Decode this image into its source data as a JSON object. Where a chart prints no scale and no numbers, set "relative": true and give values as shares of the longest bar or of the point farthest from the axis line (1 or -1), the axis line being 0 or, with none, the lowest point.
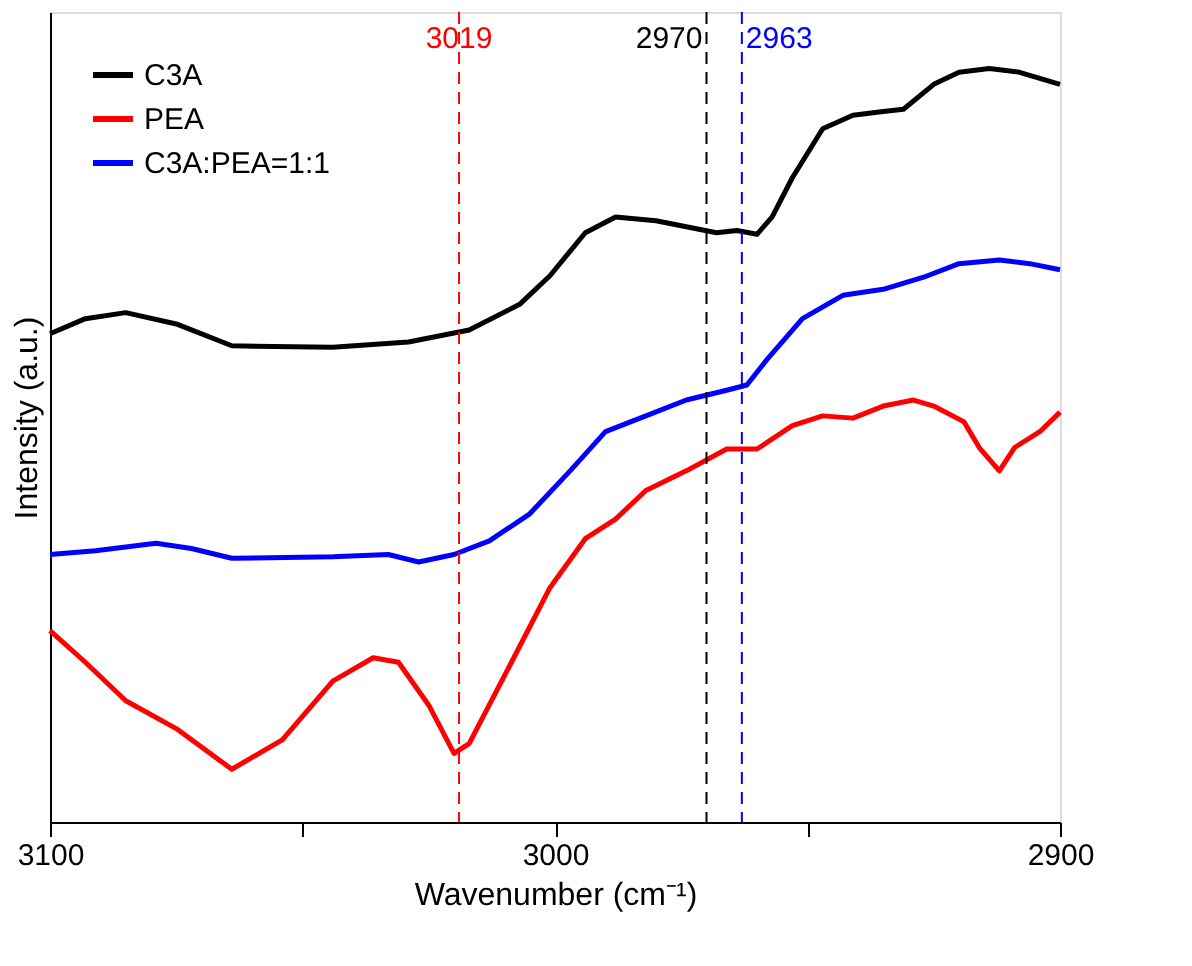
{
  "chart_data": {
    "type": "line",
    "relative": true,
    "xlabel": "Wavenumber (cm⁻¹)",
    "ylabel": "Intensity (a.u.)",
    "xlim": [
      3100,
      2900
    ],
    "xticks": [
      3100,
      {
        "value": 3050,
        "label": null
      },
      3000,
      {
        "value": 2950,
        "label": null
      },
      2900
    ],
    "grid": false,
    "legend": "top left",
    "marker": "none",
    "line_style": "solid",
    "series": [
      {
        "name": "C3A",
        "color": "#000000",
        "x": [
          3100,
          3093,
          3085,
          3075,
          3064,
          3044,
          3029,
          3017,
          3007,
          3001,
          2994,
          2988,
          2980,
          2974,
          2968,
          2964,
          2960,
          2957,
          2953,
          2947,
          2941,
          2935,
          2931,
          2925,
          2920,
          2914,
          2908,
          2900
        ],
        "values": [
          0.648,
          0.668,
          0.676,
          0.661,
          0.632,
          0.63,
          0.637,
          0.653,
          0.687,
          0.725,
          0.782,
          0.803,
          0.798,
          0.79,
          0.782,
          0.785,
          0.78,
          0.803,
          0.855,
          0.92,
          0.938,
          0.943,
          0.946,
          0.979,
          0.995,
          1.0,
          0.995,
          0.979
        ]
      },
      {
        "name": "PEA",
        "color": "#ff0000",
        "x": [
          3100,
          3093,
          3085,
          3075,
          3064,
          3054,
          3044,
          3036,
          3031,
          3025,
          3020,
          3017,
          3009,
          3001,
          2994,
          2988,
          2982,
          2974,
          2966,
          2960,
          2953,
          2947,
          2941,
          2935,
          2929,
          2925,
          2919,
          2916,
          2912,
          2909,
          2904,
          2900
        ],
        "values": [
          0.254,
          0.212,
          0.161,
          0.124,
          0.07,
          0.109,
          0.187,
          0.218,
          0.212,
          0.155,
          0.091,
          0.104,
          0.207,
          0.311,
          0.376,
          0.402,
          0.44,
          0.466,
          0.495,
          0.495,
          0.526,
          0.539,
          0.536,
          0.552,
          0.56,
          0.552,
          0.531,
          0.497,
          0.466,
          0.497,
          0.518,
          0.544
        ]
      },
      {
        "name": "C3A:PEA=1:1",
        "color": "#0000ff",
        "x": [
          3100,
          3091,
          3079,
          3072,
          3064,
          3044,
          3033,
          3027,
          3020,
          3013,
          3005,
          2997,
          2990,
          2982,
          2974,
          2966,
          2962,
          2958,
          2951,
          2943,
          2935,
          2927,
          2920,
          2912,
          2906,
          2900
        ],
        "values": [
          0.355,
          0.36,
          0.37,
          0.363,
          0.35,
          0.352,
          0.355,
          0.345,
          0.355,
          0.373,
          0.409,
          0.466,
          0.518,
          0.539,
          0.56,
          0.573,
          0.58,
          0.614,
          0.668,
          0.699,
          0.707,
          0.723,
          0.741,
          0.746,
          0.741,
          0.733
        ]
      }
    ],
    "ref_lines": [
      {
        "axis": "x",
        "value": 3019,
        "label": "3019",
        "color": "#ff0000",
        "line_style": "dashed"
      },
      {
        "axis": "x",
        "value": 2970,
        "label": "2970",
        "color": "#000000",
        "line_style": "dashed"
      },
      {
        "axis": "x",
        "value": 2963,
        "label": "2963",
        "color": "#0000ff",
        "line_style": "dashed"
      }
    ]
  }
}
